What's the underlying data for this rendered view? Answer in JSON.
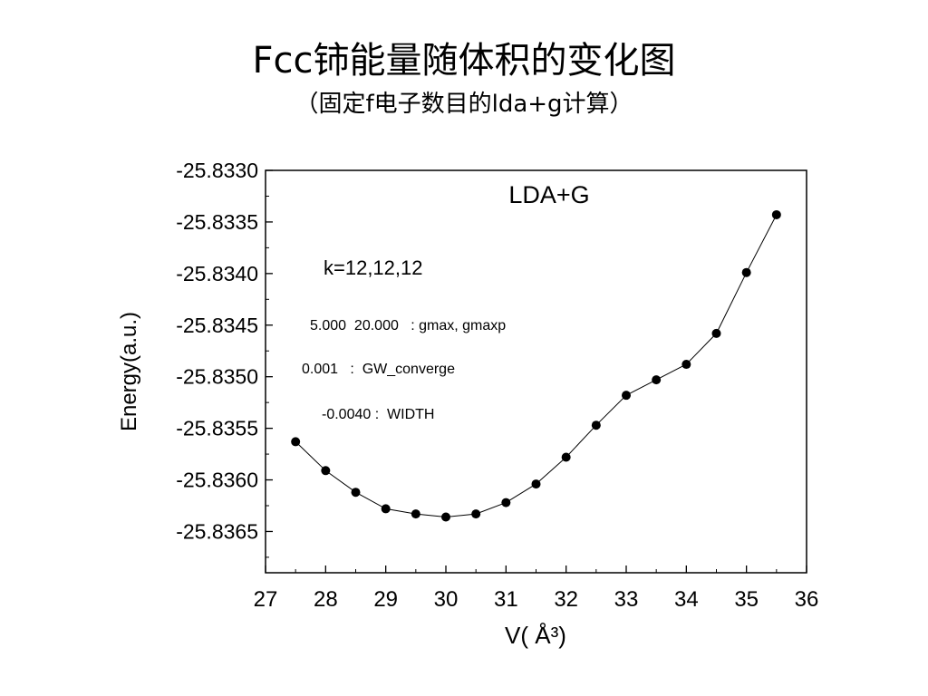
{
  "slide": {
    "title": "Fcc铈能量随体积的变化图",
    "subtitle": "（固定f电子数目的lda+g计算）"
  },
  "chart_data": {
    "type": "line",
    "title": "LDA+G",
    "xlabel": "V( Å³)",
    "ylabel": "Energy(a.u.)",
    "xlim": [
      27,
      36
    ],
    "ylim": [
      -25.8369,
      -25.833
    ],
    "xticks": [
      "27",
      "28",
      "29",
      "30",
      "31",
      "32",
      "33",
      "34",
      "35",
      "36"
    ],
    "yticks": [
      "-25.8330",
      "-25.8335",
      "-25.8340",
      "-25.8345",
      "-25.8350",
      "-25.8355",
      "-25.8360",
      "-25.8365"
    ],
    "grid": false,
    "legend": "none",
    "series": [
      {
        "x": [
          27.5,
          28.0,
          28.5,
          29.0,
          29.5,
          30.0,
          30.5,
          31.0,
          31.5,
          32.0,
          32.5,
          33.0,
          33.5,
          34.0,
          34.5,
          35.0,
          35.5
        ],
        "y": [
          -25.83563,
          -25.83591,
          -25.83612,
          -25.83628,
          -25.83633,
          -25.83636,
          -25.83633,
          -25.83622,
          -25.83604,
          -25.83578,
          -25.83547,
          -25.83518,
          -25.83503,
          -25.83488,
          -25.83458,
          -25.83399,
          -25.83343
        ]
      }
    ],
    "annotations": [
      "k=12,12,12",
      "5.000  20.000   : gmax, gmaxp",
      "0.001   :  GW_converge",
      "-0.0040 :  WIDTH"
    ]
  }
}
